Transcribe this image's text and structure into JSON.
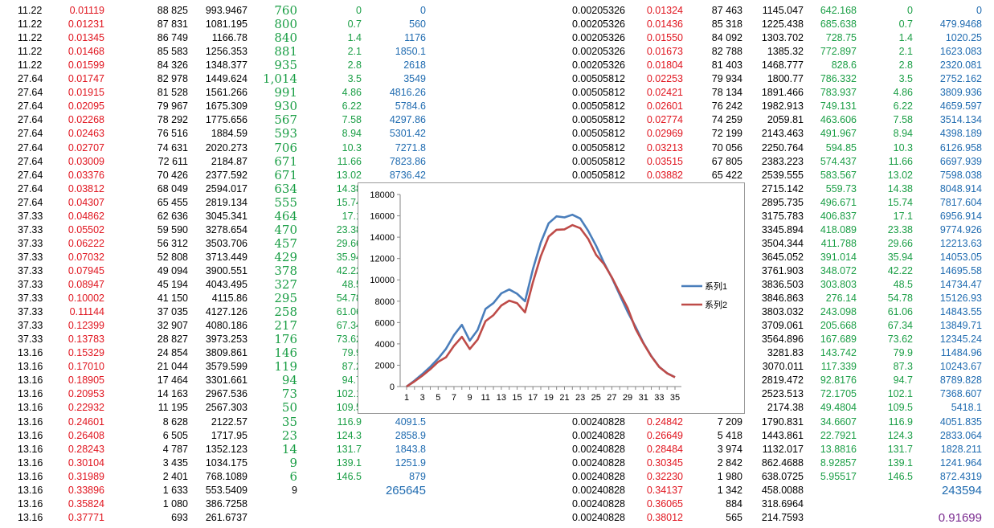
{
  "rows": [
    {
      "a": "11.22",
      "b": "0.01119",
      "c": "88 825",
      "d": "993.9467",
      "e": "760",
      "f": "0",
      "g": "0",
      "h": "0.00205326",
      "i": "0.01324",
      "j": "87 463",
      "k": "1145.047",
      "l": "642.168",
      "m": "0",
      "n": "0"
    },
    {
      "a": "11.22",
      "b": "0.01231",
      "c": "87 831",
      "d": "1081.195",
      "e": "800",
      "f": "0.7",
      "g": "560",
      "h": "0.00205326",
      "i": "0.01436",
      "j": "85 318",
      "k": "1225.438",
      "l": "685.638",
      "m": "0.7",
      "n": "479.9468"
    },
    {
      "a": "11.22",
      "b": "0.01345",
      "c": "86 749",
      "d": "1166.78",
      "e": "840",
      "f": "1.4",
      "g": "1176",
      "h": "0.00205326",
      "i": "0.01550",
      "j": "84 092",
      "k": "1303.702",
      "l": "728.75",
      "m": "1.4",
      "n": "1020.25"
    },
    {
      "a": "11.22",
      "b": "0.01468",
      "c": "85 583",
      "d": "1256.353",
      "e": "881",
      "f": "2.1",
      "g": "1850.1",
      "h": "0.00205326",
      "i": "0.01673",
      "j": "82 788",
      "k": "1385.32",
      "l": "772.897",
      "m": "2.1",
      "n": "1623.083"
    },
    {
      "a": "11.22",
      "b": "0.01599",
      "c": "84 326",
      "d": "1348.377",
      "e": "935",
      "f": "2.8",
      "g": "2618",
      "h": "0.00205326",
      "i": "0.01804",
      "j": "81 403",
      "k": "1468.777",
      "l": "828.6",
      "m": "2.8",
      "n": "2320.081"
    },
    {
      "a": "27.64",
      "b": "0.01747",
      "c": "82 978",
      "d": "1449.624",
      "e": "1,014",
      "f": "3.5",
      "g": "3549",
      "h": "0.00505812",
      "i": "0.02253",
      "j": "79 934",
      "k": "1800.77",
      "l": "786.332",
      "m": "3.5",
      "n": "2752.162"
    },
    {
      "a": "27.64",
      "b": "0.01915",
      "c": "81 528",
      "d": "1561.266",
      "e": "991",
      "f": "4.86",
      "g": "4816.26",
      "h": "0.00505812",
      "i": "0.02421",
      "j": "78 134",
      "k": "1891.466",
      "l": "783.937",
      "m": "4.86",
      "n": "3809.936"
    },
    {
      "a": "27.64",
      "b": "0.02095",
      "c": "79 967",
      "d": "1675.309",
      "e": "930",
      "f": "6.22",
      "g": "5784.6",
      "h": "0.00505812",
      "i": "0.02601",
      "j": "76 242",
      "k": "1982.913",
      "l": "749.131",
      "m": "6.22",
      "n": "4659.597"
    },
    {
      "a": "27.64",
      "b": "0.02268",
      "c": "78 292",
      "d": "1775.656",
      "e": "567",
      "f": "7.58",
      "g": "4297.86",
      "h": "0.00505812",
      "i": "0.02774",
      "j": "74 259",
      "k": "2059.81",
      "l": "463.606",
      "m": "7.58",
      "n": "3514.134"
    },
    {
      "a": "27.64",
      "b": "0.02463",
      "c": "76 516",
      "d": "1884.59",
      "e": "593",
      "f": "8.94",
      "g": "5301.42",
      "h": "0.00505812",
      "i": "0.02969",
      "j": "72 199",
      "k": "2143.463",
      "l": "491.967",
      "m": "8.94",
      "n": "4398.189"
    },
    {
      "a": "27.64",
      "b": "0.02707",
      "c": "74 631",
      "d": "2020.273",
      "e": "706",
      "f": "10.3",
      "g": "7271.8",
      "h": "0.00505812",
      "i": "0.03213",
      "j": "70 056",
      "k": "2250.764",
      "l": "594.85",
      "m": "10.3",
      "n": "6126.958"
    },
    {
      "a": "27.64",
      "b": "0.03009",
      "c": "72 611",
      "d": "2184.87",
      "e": "671",
      "f": "11.66",
      "g": "7823.86",
      "h": "0.00505812",
      "i": "0.03515",
      "j": "67 805",
      "k": "2383.223",
      "l": "574.437",
      "m": "11.66",
      "n": "6697.939"
    },
    {
      "a": "27.64",
      "b": "0.03376",
      "c": "70 426",
      "d": "2377.592",
      "e": "671",
      "f": "13.02",
      "g": "8736.42",
      "h": "0.00505812",
      "i": "0.03882",
      "j": "65 422",
      "k": "2539.555",
      "l": "583.567",
      "m": "13.02",
      "n": "7598.038"
    },
    {
      "a": "27.64",
      "b": "0.03812",
      "c": "68 049",
      "d": "2594.017",
      "e": "634",
      "f": "14.38",
      "g": "",
      "h": "",
      "i": "",
      "j": "",
      "k": "2715.142",
      "l": "559.73",
      "m": "14.38",
      "n": "8048.914"
    },
    {
      "a": "27.64",
      "b": "0.04307",
      "c": "65 455",
      "d": "2819.134",
      "e": "555",
      "f": "15.74",
      "g": "",
      "h": "",
      "i": "",
      "j": "",
      "k": "2895.735",
      "l": "496.671",
      "m": "15.74",
      "n": "7817.604"
    },
    {
      "a": "37.33",
      "b": "0.04862",
      "c": "62 636",
      "d": "3045.341",
      "e": "464",
      "f": "17.1",
      "g": "",
      "h": "",
      "i": "",
      "j": "",
      "k": "3175.783",
      "l": "406.837",
      "m": "17.1",
      "n": "6956.914"
    },
    {
      "a": "37.33",
      "b": "0.05502",
      "c": "59 590",
      "d": "3278.654",
      "e": "470",
      "f": "23.38",
      "g": "",
      "h": "",
      "i": "",
      "j": "",
      "k": "3345.894",
      "l": "418.089",
      "m": "23.38",
      "n": "9774.926"
    },
    {
      "a": "37.33",
      "b": "0.06222",
      "c": "56 312",
      "d": "3503.706",
      "e": "457",
      "f": "29.66",
      "g": "",
      "h": "",
      "i": "",
      "j": "",
      "k": "3504.344",
      "l": "411.788",
      "m": "29.66",
      "n": "12213.63"
    },
    {
      "a": "37.33",
      "b": "0.07032",
      "c": "52 808",
      "d": "3713.449",
      "e": "429",
      "f": "35.94",
      "g": "",
      "h": "",
      "i": "",
      "j": "",
      "k": "3645.052",
      "l": "391.014",
      "m": "35.94",
      "n": "14053.05"
    },
    {
      "a": "37.33",
      "b": "0.07945",
      "c": "49 094",
      "d": "3900.551",
      "e": "378",
      "f": "42.22",
      "g": "",
      "h": "",
      "i": "",
      "j": "",
      "k": "3761.903",
      "l": "348.072",
      "m": "42.22",
      "n": "14695.58"
    },
    {
      "a": "37.33",
      "b": "0.08947",
      "c": "45 194",
      "d": "4043.495",
      "e": "327",
      "f": "48.5",
      "g": "",
      "h": "",
      "i": "",
      "j": "",
      "k": "3836.503",
      "l": "303.803",
      "m": "48.5",
      "n": "14734.47"
    },
    {
      "a": "37.33",
      "b": "0.10002",
      "c": "41 150",
      "d": "4115.86",
      "e": "295",
      "f": "54.78",
      "g": "",
      "h": "",
      "i": "",
      "j": "",
      "k": "3846.863",
      "l": "276.14",
      "m": "54.78",
      "n": "15126.93"
    },
    {
      "a": "37.33",
      "b": "0.11144",
      "c": "37 035",
      "d": "4127.126",
      "e": "258",
      "f": "61.06",
      "g": "",
      "h": "",
      "i": "",
      "j": "",
      "k": "3803.032",
      "l": "243.098",
      "m": "61.06",
      "n": "14843.55"
    },
    {
      "a": "37.33",
      "b": "0.12399",
      "c": "32 907",
      "d": "4080.186",
      "e": "217",
      "f": "67.34",
      "g": "",
      "h": "",
      "i": "",
      "j": "",
      "k": "3709.061",
      "l": "205.668",
      "m": "67.34",
      "n": "13849.71"
    },
    {
      "a": "37.33",
      "b": "0.13783",
      "c": "28 827",
      "d": "3973.253",
      "e": "176",
      "f": "73.62",
      "g": "",
      "h": "",
      "i": "",
      "j": "",
      "k": "3564.896",
      "l": "167.689",
      "m": "73.62",
      "n": "12345.24"
    },
    {
      "a": "13.16",
      "b": "0.15329",
      "c": "24 854",
      "d": "3809.861",
      "e": "146",
      "f": "79.9",
      "g": "",
      "h": "",
      "i": "",
      "j": "",
      "k": "3281.83",
      "l": "143.742",
      "m": "79.9",
      "n": "11484.96"
    },
    {
      "a": "13.16",
      "b": "0.17010",
      "c": "21 044",
      "d": "3579.599",
      "e": "119",
      "f": "87.2",
      "g": "",
      "h": "",
      "i": "",
      "j": "",
      "k": "3070.011",
      "l": "117.339",
      "m": "87.3",
      "n": "10243.67"
    },
    {
      "a": "13.16",
      "b": "0.18905",
      "c": "17 464",
      "d": "3301.661",
      "e": "94",
      "f": "94.7",
      "g": "",
      "h": "",
      "i": "",
      "j": "",
      "k": "2819.472",
      "l": "92.8176",
      "m": "94.7",
      "n": "8789.828"
    },
    {
      "a": "13.16",
      "b": "0.20953",
      "c": "14 163",
      "d": "2967.536",
      "e": "73",
      "f": "102.1",
      "g": "",
      "h": "",
      "i": "",
      "j": "",
      "k": "2523.513",
      "l": "72.1705",
      "m": "102.1",
      "n": "7368.607"
    },
    {
      "a": "13.16",
      "b": "0.22932",
      "c": "11 195",
      "d": "2567.303",
      "e": "50",
      "f": "109.5",
      "g": "",
      "h": "",
      "i": "",
      "j": "",
      "k": "2174.38",
      "l": "49.4804",
      "m": "109.5",
      "n": "5418.1"
    },
    {
      "a": "13.16",
      "b": "0.24601",
      "c": "8 628",
      "d": "2122.57",
      "e": "35",
      "f": "116.9",
      "g": "4091.5",
      "h": "0.00240828",
      "i": "0.24842",
      "j": "7 209",
      "k": "1790.831",
      "l": "34.6607",
      "m": "116.9",
      "n": "4051.835"
    },
    {
      "a": "13.16",
      "b": "0.26408",
      "c": "6 505",
      "d": "1717.95",
      "e": "23",
      "f": "124.3",
      "g": "2858.9",
      "h": "0.00240828",
      "i": "0.26649",
      "j": "5 418",
      "k": "1443.861",
      "l": "22.7921",
      "m": "124.3",
      "n": "2833.064"
    },
    {
      "a": "13.16",
      "b": "0.28243",
      "c": "4 787",
      "d": "1352.123",
      "e": "14",
      "f": "131.7",
      "g": "1843.8",
      "h": "0.00240828",
      "i": "0.28484",
      "j": "3 974",
      "k": "1132.017",
      "l": "13.8816",
      "m": "131.7",
      "n": "1828.211"
    },
    {
      "a": "13.16",
      "b": "0.30104",
      "c": "3 435",
      "d": "1034.175",
      "e": "9",
      "f": "139.1",
      "g": "1251.9",
      "h": "0.00240828",
      "i": "0.30345",
      "j": "2 842",
      "k": "862.4688",
      "l": "8.92857",
      "m": "139.1",
      "n": "1241.964"
    },
    {
      "a": "13.16",
      "b": "0.31989",
      "c": "2 401",
      "d": "768.1089",
      "e": "6",
      "f": "146.5",
      "g": "879",
      "h": "0.00240828",
      "i": "0.32230",
      "j": "1 980",
      "k": "638.0725",
      "l": "5.95517",
      "m": "146.5",
      "n": "872.4319"
    },
    {
      "a": "13.16",
      "b": "0.33896",
      "c": "1 633",
      "d": "553.5409",
      "e": "9",
      "f": "",
      "g": "265645",
      "h": "0.00240828",
      "i": "0.34137",
      "j": "1 342",
      "k": "458.0088",
      "l": "",
      "m": "",
      "n": "243594"
    },
    {
      "a": "13.16",
      "b": "0.35824",
      "c": "1 080",
      "d": "386.7258",
      "e": "",
      "f": "",
      "g": "",
      "h": "0.00240828",
      "i": "0.36065",
      "j": "884",
      "k": "318.6964",
      "l": "",
      "m": "",
      "n": ""
    },
    {
      "a": "13.16",
      "b": "0.37771",
      "c": "693",
      "d": "261.6737",
      "e": "",
      "f": "",
      "g": "",
      "h": "0.00240828",
      "i": "0.38012",
      "j": "565",
      "k": "214.7593",
      "l": "",
      "m": "",
      "n": "0.91699"
    }
  ],
  "chart_data": {
    "type": "line",
    "x": [
      1,
      2,
      3,
      4,
      5,
      6,
      7,
      8,
      9,
      10,
      11,
      12,
      13,
      14,
      15,
      16,
      17,
      18,
      19,
      20,
      21,
      22,
      23,
      24,
      25,
      26,
      27,
      28,
      29,
      30,
      31,
      32,
      33,
      34,
      35
    ],
    "x_tick_labels": [
      "1",
      "3",
      "5",
      "7",
      "9",
      "11",
      "13",
      "15",
      "17",
      "19",
      "21",
      "23",
      "25",
      "27",
      "29",
      "31",
      "33",
      "35"
    ],
    "y_tick_labels": [
      "0",
      "2000",
      "4000",
      "6000",
      "8000",
      "10000",
      "12000",
      "14000",
      "16000",
      "18000"
    ],
    "ylim": [
      0,
      18000
    ],
    "legend_position": "right",
    "series": [
      {
        "name": "系列1",
        "color": "#4a7ebb",
        "values": [
          0,
          560,
          1176,
          1850.1,
          2618,
          3549,
          4816.26,
          5784.6,
          4297.86,
          5301.42,
          7271.8,
          7823.86,
          8736.42,
          9100,
          8700,
          8000,
          11000,
          13500,
          15300,
          15950,
          15850,
          16100,
          15750,
          14600,
          13200,
          11600,
          10200,
          8600,
          7000,
          5600,
          4091.5,
          2858.9,
          1843.8,
          1251.9,
          879
        ]
      },
      {
        "name": "系列2",
        "color": "#be4b48",
        "values": [
          0,
          479.9468,
          1020.25,
          1623.083,
          2320.081,
          2752.162,
          3809.936,
          4659.597,
          3514.134,
          4398.189,
          6126.958,
          6697.939,
          7598.038,
          8048.914,
          7817.604,
          6956.914,
          9774.926,
          12213.63,
          14053.05,
          14695.58,
          14734.47,
          15126.93,
          14843.55,
          13849.71,
          12345.24,
          11484.96,
          10243.67,
          8789.828,
          7368.607,
          5418.1,
          4051.835,
          2833.064,
          1828.211,
          1241.964,
          872.4319
        ]
      }
    ]
  }
}
